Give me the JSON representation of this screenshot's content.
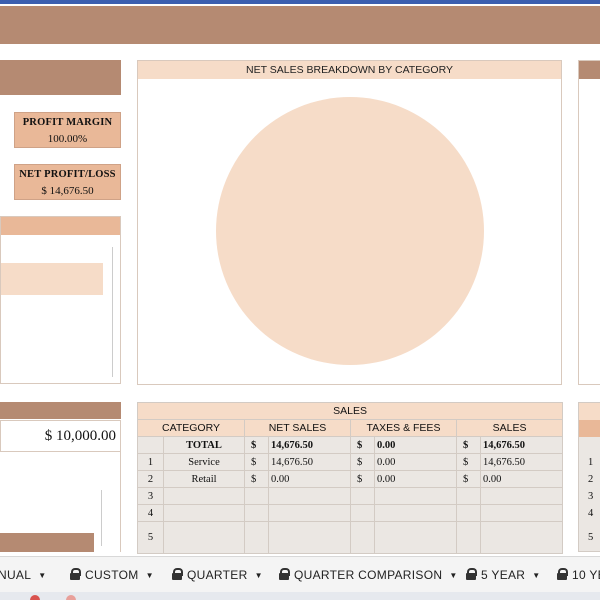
{
  "kpis": {
    "profit_margin_label": "PROFIT MARGIN",
    "profit_margin_value": "100.00%",
    "net_profit_label": "NET PROFIT/LOSS",
    "net_profit_value": "$  14,676.50"
  },
  "goal": {
    "value": "$ 10,000.00"
  },
  "chart": {
    "title": "NET SALES BREAKDOWN BY CATEGORY",
    "fill_color": "#f6dcc8"
  },
  "chart_data": {
    "type": "pie",
    "title": "NET SALES BREAKDOWN BY CATEGORY",
    "categories": [
      "Service",
      "Retail"
    ],
    "values": [
      14676.5,
      0.0
    ]
  },
  "sales_table": {
    "title": "SALES",
    "headers": [
      "CATEGORY",
      "NET SALES",
      "TAXES & FEES",
      "SALES"
    ],
    "total": {
      "label": "TOTAL",
      "net_cur": "$",
      "net": "14,676.50",
      "tax_cur": "$",
      "tax": "0.00",
      "sales_cur": "$",
      "sales": "14,676.50"
    },
    "rows": [
      {
        "idx": "1",
        "category": "Service",
        "net_cur": "$",
        "net": "14,676.50",
        "tax_cur": "$",
        "tax": "0.00",
        "sales_cur": "$",
        "sales": "14,676.50"
      },
      {
        "idx": "2",
        "category": "Retail",
        "net_cur": "$",
        "net": "0.00",
        "tax_cur": "$",
        "tax": "0.00",
        "sales_cur": "$",
        "sales": "0.00"
      },
      {
        "idx": "3",
        "category": "",
        "net_cur": "",
        "net": "",
        "tax_cur": "",
        "tax": "",
        "sales_cur": "",
        "sales": ""
      },
      {
        "idx": "4",
        "category": "",
        "net_cur": "",
        "net": "",
        "tax_cur": "",
        "tax": "",
        "sales_cur": "",
        "sales": ""
      },
      {
        "idx": "5",
        "category": "",
        "net_cur": "",
        "net": "",
        "tax_cur": "",
        "tax": "",
        "sales_cur": "",
        "sales": ""
      }
    ]
  },
  "right_index": [
    "1",
    "2",
    "3",
    "4",
    "5"
  ],
  "sheet_tabs": [
    {
      "label": "NUAL",
      "locked": false
    },
    {
      "label": "CUSTOM",
      "locked": true
    },
    {
      "label": "QUARTER",
      "locked": true
    },
    {
      "label": "QUARTER COMPARISON",
      "locked": true
    },
    {
      "label": "5 YEAR",
      "locked": true
    },
    {
      "label": "10 YE",
      "locked": true
    }
  ],
  "colors": {
    "brand_brown": "#b58a72",
    "accent_peach": "#e9b898",
    "light_peach": "#f6dcc8",
    "grid_gray": "#ebe7e3"
  }
}
